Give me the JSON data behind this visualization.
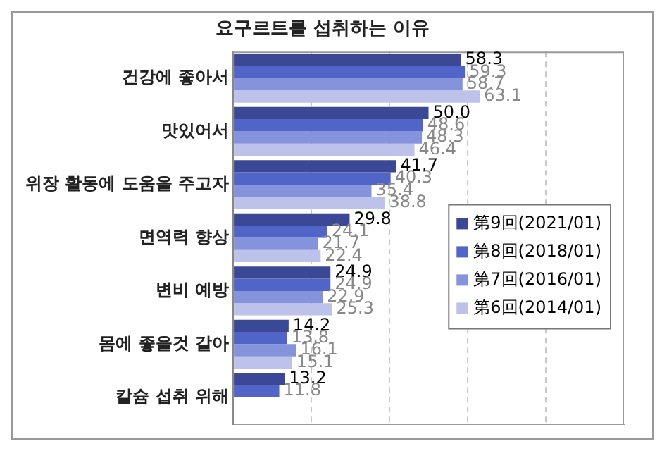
{
  "chart_data": {
    "type": "bar",
    "orientation": "horizontal",
    "title": "요구르트를 섭취하는 이유",
    "categories": [
      "건강에 좋아서",
      "맛있어서",
      "위장 활동에 도움을 주고자",
      "면역력 향상",
      "변비 예방",
      "몸에 좋을것 같아",
      "칼슘 섭취 위해"
    ],
    "series": [
      {
        "name": "第9回(2021/01)",
        "color": "#3b4896",
        "values": [
          58.3,
          50.0,
          41.7,
          29.8,
          24.9,
          14.2,
          13.2
        ],
        "value_labels": [
          "58.3",
          "50.0",
          "41.7",
          "29.8",
          "24.9",
          "14.2",
          "13.2"
        ]
      },
      {
        "name": "第8回(2018/01)",
        "color": "#5165c8",
        "values": [
          59.3,
          48.6,
          40.3,
          24.1,
          24.9,
          13.8,
          11.8
        ],
        "value_labels": [
          "59.3",
          "48.6",
          "40.3",
          "24.1",
          "24.9",
          "13.8",
          "11.8"
        ]
      },
      {
        "name": "第7回(2016/01)",
        "color": "#8593dc",
        "values": [
          58.7,
          48.3,
          35.4,
          21.7,
          22.9,
          16.1,
          null
        ],
        "value_labels": [
          "58.7",
          "48.3",
          "35.4",
          "21.7",
          "22.9",
          "16.1",
          null
        ]
      },
      {
        "name": "第6回(2014/01)",
        "color": "#bcc2ea",
        "values": [
          63.1,
          46.4,
          38.8,
          22.4,
          25.3,
          15.1,
          null
        ],
        "value_labels": [
          "63.1",
          "46.4",
          "38.8",
          "22.4",
          "25.3",
          "15.1",
          null
        ]
      }
    ],
    "xlim": [
      0,
      100
    ],
    "xticks": [
      {
        "value": 0,
        "label": null
      },
      {
        "value": 20,
        "label": null
      },
      {
        "value": 40,
        "label": null
      },
      {
        "value": 60,
        "label": null
      },
      {
        "value": 80,
        "label": null
      }
    ],
    "tick_labels": "y",
    "grid": "x",
    "legend": "right"
  }
}
